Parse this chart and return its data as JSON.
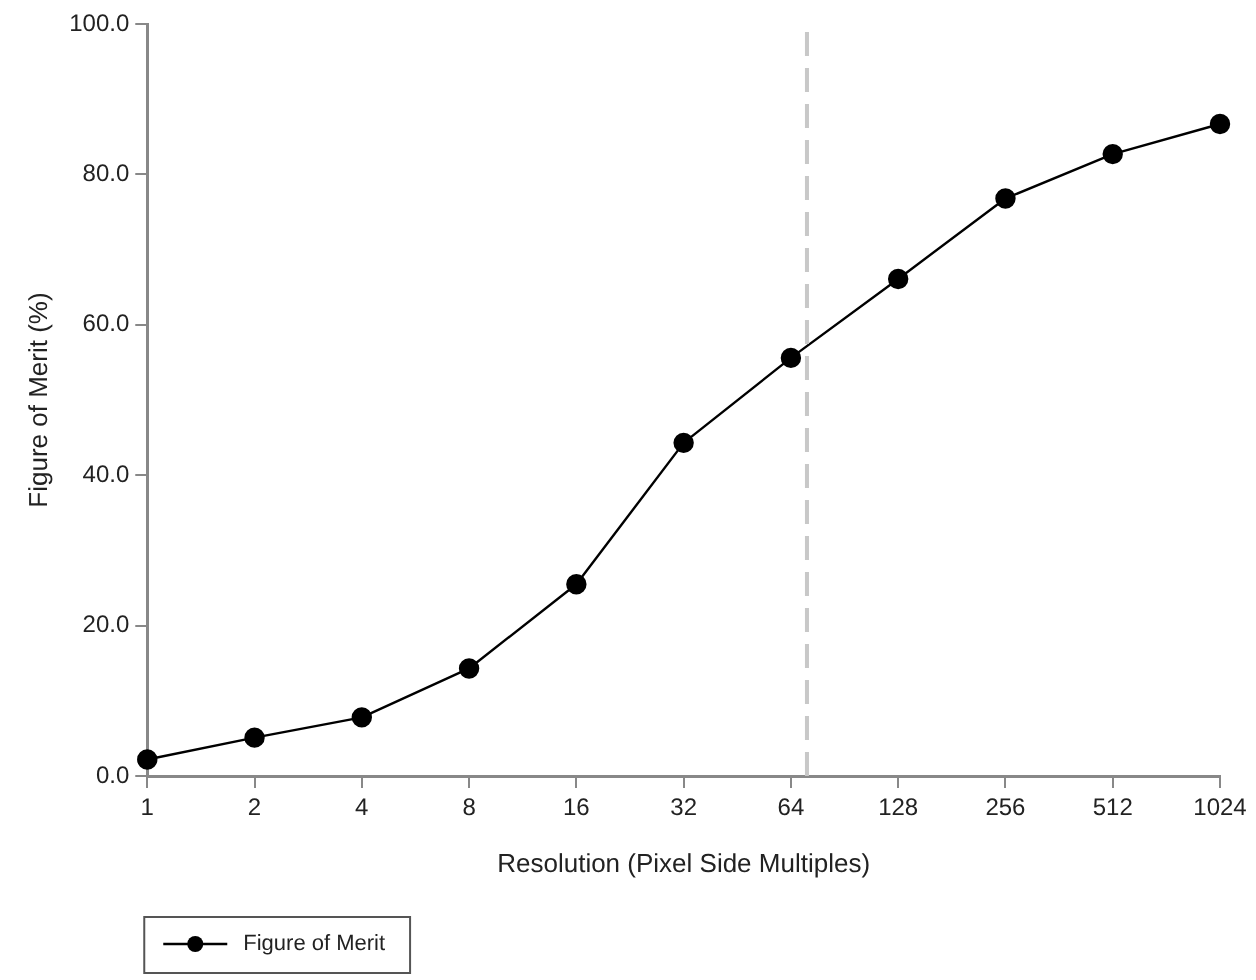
{
  "chart_data": {
    "type": "line",
    "xlabel": "Resolution (Pixel Side Multiples)",
    "ylabel": "Figure of Merit (%)",
    "x": [
      1,
      2,
      4,
      8,
      16,
      32,
      64,
      128,
      256,
      512,
      1024
    ],
    "series": [
      {
        "name": "Figure of Merit",
        "color": "#000000",
        "values": [
          2.2,
          5.1,
          7.8,
          14.3,
          25.5,
          44.3,
          55.6,
          66.1,
          76.8,
          82.7,
          86.7
        ]
      }
    ],
    "log": "x",
    "xlim": [
      1,
      1024
    ],
    "xticks": [
      1,
      2,
      4,
      8,
      16,
      32,
      64,
      128,
      256,
      512,
      1024
    ],
    "ylim": [
      0,
      100
    ],
    "yticks": [
      {
        "value": 0,
        "label": "0.0"
      },
      {
        "value": 20,
        "label": "20.0"
      },
      {
        "value": 40,
        "label": "40.0"
      },
      {
        "value": 60,
        "label": "60.0"
      },
      {
        "value": 80,
        "label": "80.0"
      },
      {
        "value": 100,
        "label": "100.0"
      }
    ],
    "ref_lines": [
      {
        "axis": "x",
        "value": 71,
        "color": "#c8c8c8",
        "line_style": "dashed"
      }
    ],
    "grid": false,
    "legend": "bottom left",
    "marker": "circle",
    "line_style": "solid"
  }
}
